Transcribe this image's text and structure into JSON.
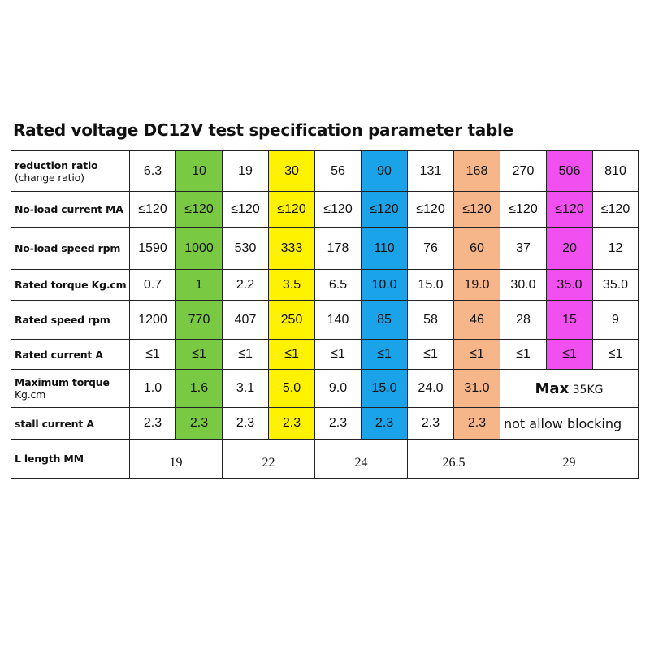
{
  "title": "Rated voltage DC12V test specification parameter table",
  "colors": {
    "green": "#7ac943",
    "yellow": "#fff200",
    "blue": "#1aa3e8",
    "orange": "#f7b58a",
    "magenta": "#f24ff0"
  },
  "rows": {
    "reduction_ratio": {
      "label": "reduction ratio",
      "label2": "(change ratio)",
      "values": [
        "6.3",
        "10",
        "19",
        "30",
        "56",
        "90",
        "131",
        "168",
        "270",
        "506",
        "810"
      ]
    },
    "no_load_current": {
      "label": "No-load current MA",
      "values": [
        "≤120",
        "≤120",
        "≤120",
        "≤120",
        "≤120",
        "≤120",
        "≤120",
        "≤120",
        "≤120",
        "≤120",
        "≤120"
      ]
    },
    "no_load_speed": {
      "label": "No-load speed rpm",
      "values": [
        "1590",
        "1000",
        "530",
        "333",
        "178",
        "110",
        "76",
        "60",
        "37",
        "20",
        "12"
      ]
    },
    "rated_torque": {
      "label": "Rated torque Kg.cm",
      "values": [
        "0.7",
        "1",
        "2.2",
        "3.5",
        "6.5",
        "10.0",
        "15.0",
        "19.0",
        "30.0",
        "35.0",
        "35.0"
      ]
    },
    "rated_speed": {
      "label": "Rated speed rpm",
      "values": [
        "1200",
        "770",
        "407",
        "250",
        "140",
        "85",
        "58",
        "46",
        "28",
        "15",
        "9"
      ]
    },
    "rated_current": {
      "label": "Rated current A",
      "values": [
        "≤1",
        "≤1",
        "≤1",
        "≤1",
        "≤1",
        "≤1",
        "≤1",
        "≤1",
        "≤1",
        "≤1",
        "≤1"
      ]
    },
    "max_torque": {
      "label": "Maximum torque",
      "label2": "Kg.cm",
      "values": [
        "1.0",
        "1.6",
        "3.1",
        "5.0",
        "9.0",
        "15.0",
        "24.0",
        "31.0"
      ],
      "merged_big": "Max",
      "merged_small": " 35KG"
    },
    "stall_current": {
      "label": "stall current A",
      "values": [
        "2.3",
        "2.3",
        "2.3",
        "2.3",
        "2.3",
        "2.3",
        "2.3",
        "2.3"
      ],
      "merged": "not allow blocking"
    },
    "length": {
      "label": "L length MM",
      "values": [
        "19",
        "22",
        "24",
        "26.5",
        "29"
      ]
    }
  }
}
